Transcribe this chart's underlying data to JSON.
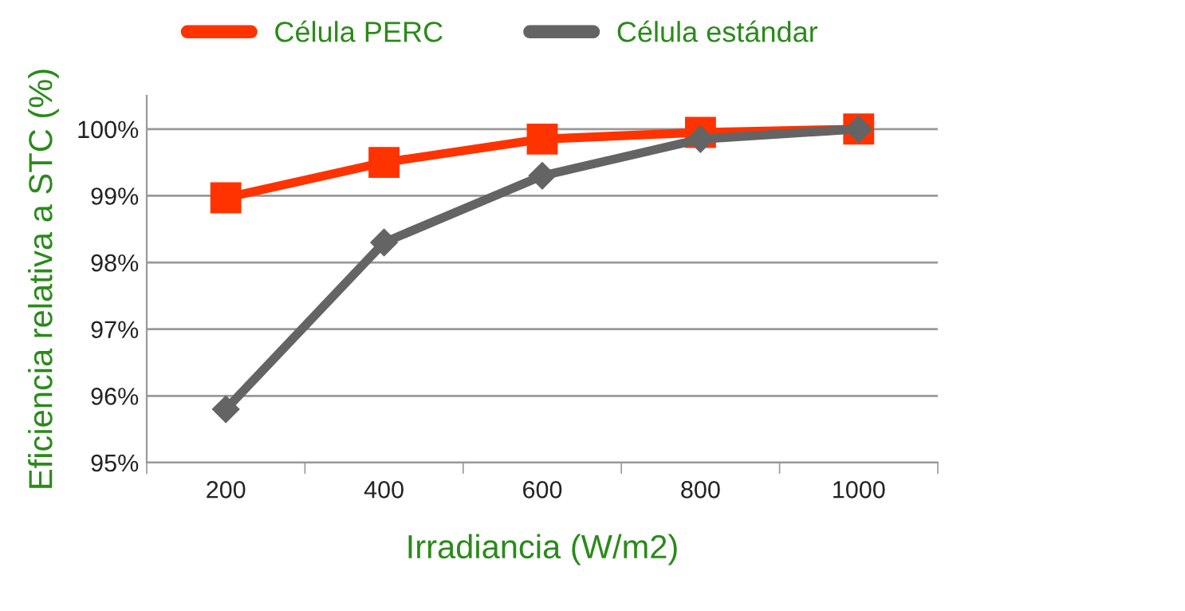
{
  "chart_data": {
    "type": "line",
    "xlabel": "Irradiancia (W/m2)",
    "ylabel": "Eficiencia relativa a STC (%)",
    "categories": [
      "200",
      "400",
      "600",
      "800",
      "1000"
    ],
    "series": [
      {
        "name": "Célula PERC",
        "color": "#ff3300",
        "values": [
          98.97,
          99.5,
          99.85,
          99.95,
          100
        ],
        "marker": "square"
      },
      {
        "name": "Célula estándar",
        "color": "#646464",
        "values": [
          95.8,
          98.3,
          99.3,
          99.85,
          100
        ],
        "marker": "diamond"
      }
    ],
    "ylim": [
      95,
      100.5
    ],
    "yticks": [
      {
        "value": 95,
        "label": "95%"
      },
      {
        "value": 96,
        "label": "96%"
      },
      {
        "value": 97,
        "label": "97%"
      },
      {
        "value": 98,
        "label": "98%"
      },
      {
        "value": 99,
        "label": "99%"
      },
      {
        "value": 100,
        "label": "100%"
      }
    ],
    "grid": "y",
    "legend": "top",
    "line_style": "solid"
  }
}
